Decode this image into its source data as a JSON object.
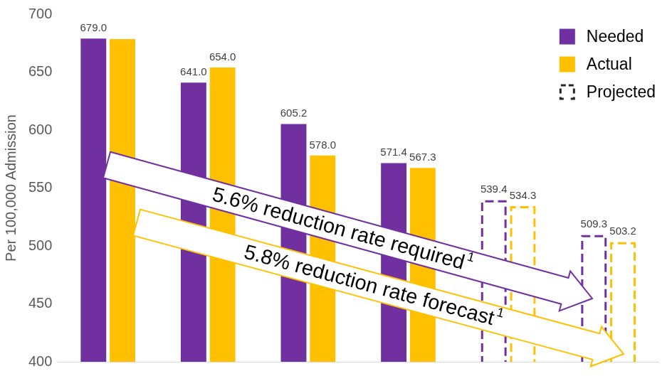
{
  "chart_data": {
    "type": "bar",
    "ylabel": "Per 100,000 Admission",
    "categories": [
      null,
      null,
      null,
      null,
      null,
      null
    ],
    "series": [
      {
        "name": "Needed",
        "color": "#7030a0",
        "values": [
          679.0,
          641.0,
          605.2,
          571.4,
          null,
          null
        ],
        "value_labels": [
          "679.0",
          "641.0",
          "605.2",
          "571.4",
          null,
          null
        ]
      },
      {
        "name": "Actual",
        "color": "#ffc000",
        "values": [
          678.5,
          654.0,
          578.0,
          567.3,
          null,
          null
        ],
        "value_labels": [
          null,
          "654.0",
          "578.0",
          "567.3",
          null,
          null
        ]
      },
      {
        "name": "Projected",
        "color": "#7030a0",
        "line_style": "dashed",
        "values": [
          null,
          null,
          null,
          null,
          539.4,
          509.3
        ],
        "value_labels": [
          null,
          null,
          null,
          null,
          "539.4",
          "509.3"
        ]
      },
      {
        "name": "Projected",
        "color": "#ffc000",
        "line_style": "dashed",
        "values": [
          null,
          null,
          null,
          null,
          534.3,
          503.2
        ],
        "value_labels": [
          null,
          null,
          null,
          null,
          "534.3",
          "503.2"
        ]
      }
    ],
    "ylim": [
      400,
      700
    ],
    "yticks": [
      400,
      450,
      500,
      550,
      600,
      650,
      700
    ],
    "grid": false,
    "legend": "upper right",
    "data_labels": true,
    "tick_labels": "y",
    "annotations": [
      {
        "text": "5.6% reduction rate required",
        "superscript": "1",
        "color": "#7030a0"
      },
      {
        "text": "5.8% reduction rate forecast",
        "superscript": "1",
        "color": "#ffc000"
      }
    ]
  }
}
